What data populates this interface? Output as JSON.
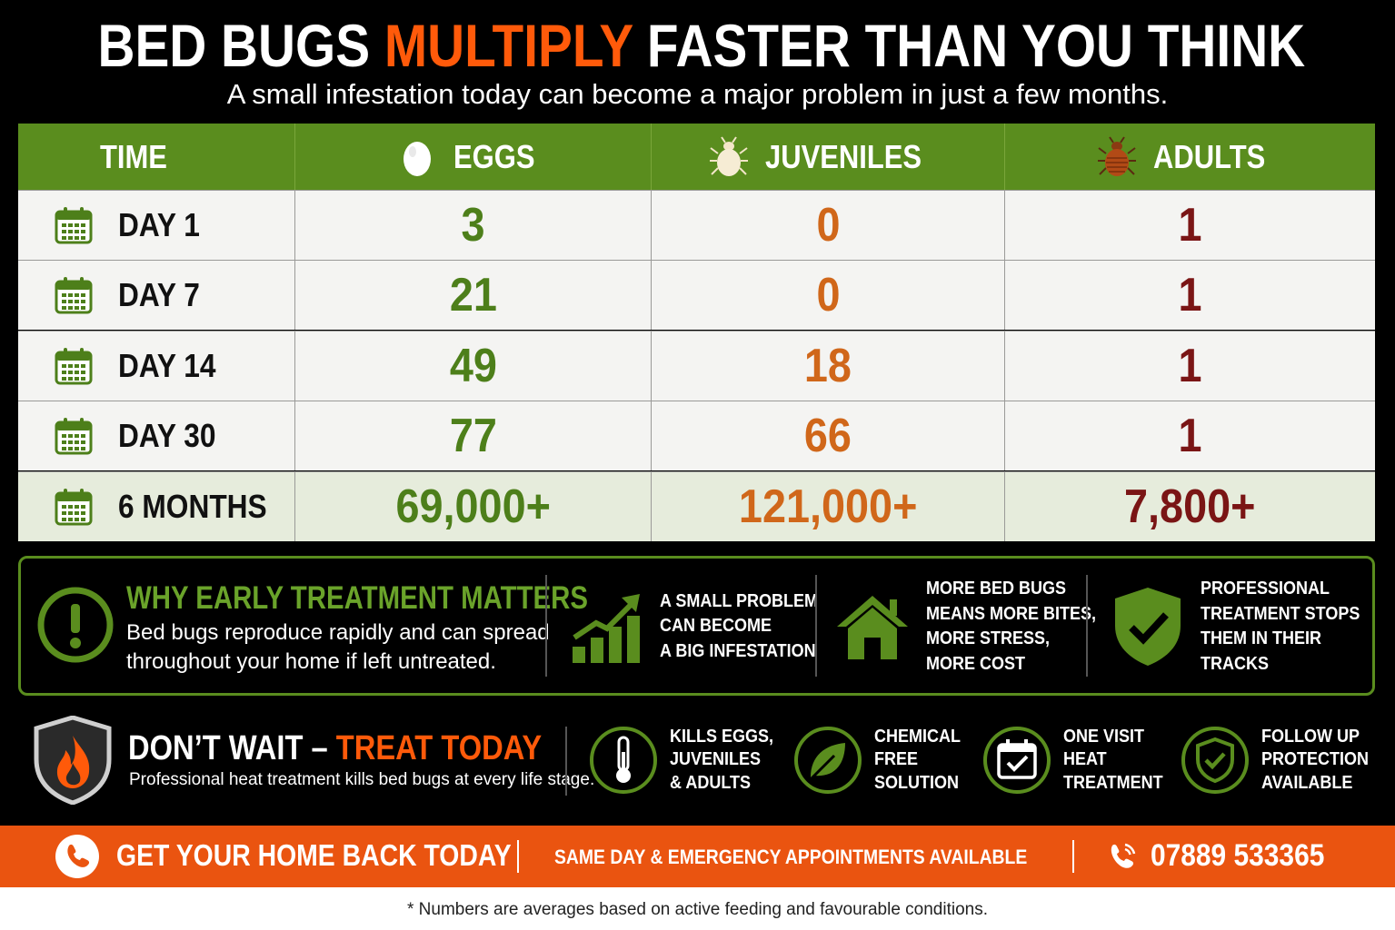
{
  "header": {
    "title_part1": "BED BUGS ",
    "title_highlight": "MULTIPLY",
    "title_part2": " FASTER THAN YOU THINK",
    "subtitle": "A small infestation today can become a major problem in just a few months."
  },
  "table": {
    "headers": {
      "time": "TIME",
      "eggs": "EGGS",
      "juveniles": "JUVENILES",
      "adults": "ADULTS"
    },
    "rows": [
      {
        "time": "DAY 1",
        "eggs": "3",
        "juveniles": "0",
        "adults": "1"
      },
      {
        "time": "DAY 7",
        "eggs": "21",
        "juveniles": "0",
        "adults": "1"
      },
      {
        "time": "DAY 14",
        "eggs": "49",
        "juveniles": "18",
        "adults": "1"
      },
      {
        "time": "DAY 30",
        "eggs": "77",
        "juveniles": "66",
        "adults": "1"
      },
      {
        "time": "6 MONTHS",
        "eggs": "69,000+",
        "juveniles": "121,000+",
        "adults": "7,800+"
      }
    ]
  },
  "why": {
    "title": "WHY EARLY TREATMENT MATTERS",
    "text": "Bed bugs reproduce rapidly and can spread throughout your home if left untreated.",
    "items": [
      {
        "icon": "growth-chart-icon",
        "lines": [
          "A SMALL PROBLEM",
          "CAN BECOME",
          "A BIG INFESTATION"
        ]
      },
      {
        "icon": "house-icon",
        "lines": [
          "MORE BED BUGS",
          "MEANS MORE BITES,",
          "MORE STRESS,",
          "MORE COST"
        ]
      },
      {
        "icon": "shield-check-icon",
        "lines": [
          "PROFESSIONAL",
          "TREATMENT STOPS",
          "THEM IN THEIR",
          "TRACKS"
        ]
      }
    ]
  },
  "treat": {
    "title_part1": "DON’T WAIT – ",
    "title_highlight": "TREAT TODAY",
    "text": "Professional heat treatment kills bed bugs at every life stage.",
    "features": [
      {
        "icon": "thermometer-icon",
        "lines": [
          "KILLS EGGS,",
          "JUVENILES",
          "& ADULTS"
        ]
      },
      {
        "icon": "leaf-icon",
        "lines": [
          "CHEMICAL",
          "FREE",
          "SOLUTION"
        ]
      },
      {
        "icon": "calendar-check-icon",
        "lines": [
          "ONE VISIT",
          "HEAT",
          "TREATMENT"
        ]
      },
      {
        "icon": "shield-check-icon",
        "lines": [
          "FOLLOW UP",
          "PROTECTION",
          "AVAILABLE"
        ]
      }
    ]
  },
  "cta": {
    "left": "GET YOUR HOME BACK TODAY",
    "middle": "SAME DAY & EMERGENCY APPOINTMENTS AVAILABLE",
    "phone": "07889 533365"
  },
  "footer": "* Numbers are averages based on active feeding and favourable conditions.",
  "colors": {
    "accent_orange": "#ff5a0a",
    "green": "#5a8d1e",
    "eggs": "#4d7f1a",
    "juveniles": "#d0671a",
    "adults": "#7a1515"
  }
}
